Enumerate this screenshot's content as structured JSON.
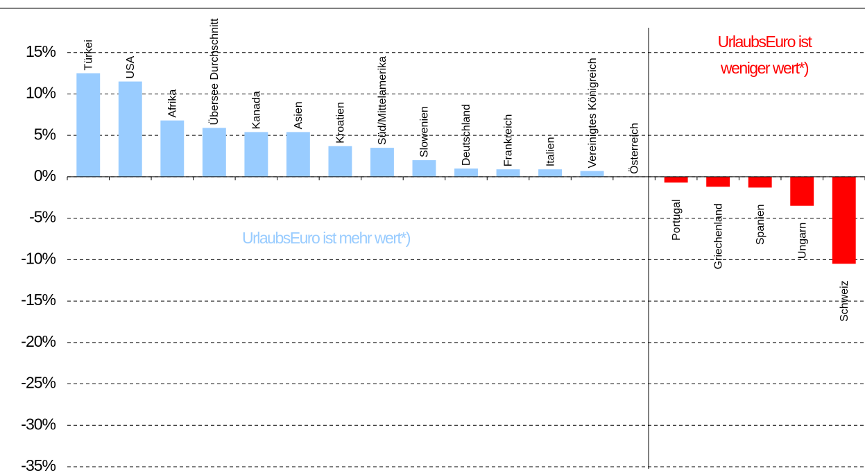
{
  "chart_data": {
    "type": "bar",
    "categories": [
      "Türkei",
      "USA",
      "Afrika",
      "Übersee Durchschnitt",
      "Kanada",
      "Asien",
      "Kroatien",
      "Süd/Mittelamerika",
      "Slowenien",
      "Deutschland",
      "Frankreich",
      "Italien",
      "Vereinigtes Königreich",
      "Österreich",
      "Portugal",
      "Griechenland",
      "Spanien",
      "Ungarn",
      "Schweiz"
    ],
    "values": [
      12.5,
      11.5,
      6.8,
      5.9,
      5.4,
      5.4,
      3.7,
      3.5,
      2.0,
      1.0,
      0.9,
      0.9,
      0.7,
      0,
      -0.7,
      -1.2,
      -1.3,
      -3.5,
      -10.5
    ],
    "positive_color": "#99ccff",
    "negative_color": "#ff0000",
    "ylim": [
      -35,
      20
    ],
    "yticks": [
      {
        "value": 15,
        "label": "15%"
      },
      {
        "value": 10,
        "label": "10%"
      },
      {
        "value": 5,
        "label": "5%"
      },
      {
        "value": 0,
        "label": "0%"
      },
      {
        "value": -5,
        "label": "-5%"
      },
      {
        "value": -10,
        "label": "-10%"
      },
      {
        "value": -15,
        "label": "-15%"
      },
      {
        "value": -20,
        "label": "-20%"
      },
      {
        "value": -25,
        "label": "-25%"
      },
      {
        "value": -30,
        "label": "-30%"
      },
      {
        "value": -35,
        "label": "-35%"
      }
    ],
    "grid": true,
    "annotations": [
      {
        "lines": [
          "UrlaubsEuro ist mehr wert*)"
        ],
        "color": "#99ccff"
      },
      {
        "lines": [
          "UrlaubsEuro ist",
          "weniger wert*)"
        ],
        "color": "#ff0000"
      }
    ]
  }
}
